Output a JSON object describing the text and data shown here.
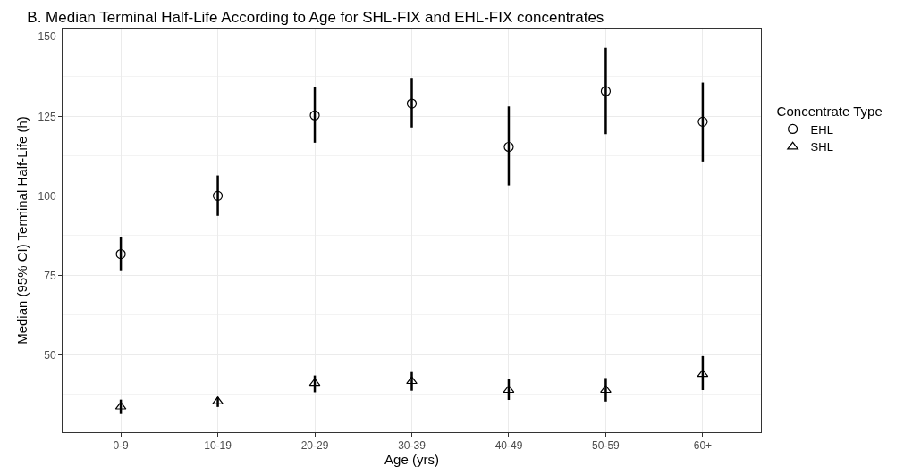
{
  "chart_data": {
    "type": "scatter",
    "title": "B. Median Terminal Half-Life According to Age for SHL-FIX and EHL-FIX concentrates",
    "xlabel": "Age (yrs)",
    "ylabel": "Median (95% CI) Terminal Half-Life (h)",
    "legend_title": "Concentrate Type",
    "categories": [
      "0-9",
      "10-19",
      "20-29",
      "30-39",
      "40-49",
      "50-59",
      "60+"
    ],
    "series": [
      {
        "name": "EHL",
        "color": "#000000",
        "marker": "circle",
        "values": [
          81.7,
          100,
          125.3,
          129,
          115.4,
          132.9,
          123.3
        ],
        "errors": [
          [
            76.6,
            86.9
          ],
          [
            93.7,
            106.4
          ],
          [
            116.7,
            134.3
          ],
          [
            121.5,
            137.1
          ],
          [
            103.3,
            128.1
          ],
          [
            119.4,
            146.5
          ],
          [
            110.8,
            135.6
          ]
        ]
      },
      {
        "name": "SHL",
        "color": "#000000",
        "marker": "triangle",
        "values": [
          33.7,
          35.3,
          41.1,
          41.7,
          38.9,
          38.9,
          43.9
        ],
        "errors": [
          [
            31.4,
            35.9
          ],
          [
            33.6,
            36.7
          ],
          [
            38.2,
            43.5
          ],
          [
            38.7,
            44.6
          ],
          [
            35.8,
            42.3
          ],
          [
            35.3,
            42.7
          ],
          [
            38.9,
            49.6
          ]
        ]
      }
    ],
    "ylim": [
      25.7,
      152.6
    ],
    "yticks": [
      50,
      75,
      100,
      125,
      150
    ],
    "grid": true,
    "legend": "right"
  }
}
